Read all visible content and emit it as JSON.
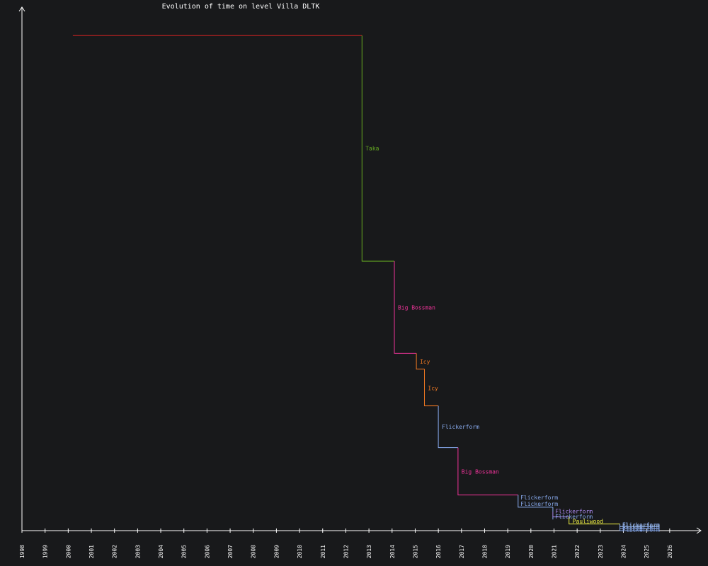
{
  "chart_data": {
    "type": "line",
    "title": "Evolution of time on level Villa DLTK",
    "xlabel": "",
    "ylabel": "",
    "x_ticks": [
      "1998",
      "1999",
      "2000",
      "2001",
      "2002",
      "2003",
      "2004",
      "2005",
      "2006",
      "2007",
      "2008",
      "2009",
      "2010",
      "2011",
      "2012",
      "2013",
      "2014",
      "2015",
      "2016",
      "2017",
      "2018",
      "2019",
      "2020",
      "2021",
      "2022",
      "2023",
      "2024",
      "2025",
      "2026"
    ],
    "xlim": [
      1998.0,
      2026.8
    ],
    "ylim": [
      0,
      1000
    ],
    "grid": false,
    "legend": "none",
    "series": [
      {
        "name": "",
        "color": "#cc2222",
        "points": [
          [
            2000.2,
            972
          ],
          [
            2012.7,
            972
          ]
        ]
      },
      {
        "name": "Taka",
        "color": "#66aa22",
        "points": [
          [
            2012.7,
            972
          ],
          [
            2012.7,
            529
          ],
          [
            2014.1,
            529
          ]
        ],
        "label": "Taka",
        "label_at": [
          2012.85,
          751
        ]
      },
      {
        "name": "Big Bossman",
        "color": "#ee3399",
        "points": [
          [
            2014.1,
            529
          ],
          [
            2014.1,
            348
          ],
          [
            2015.05,
            348
          ]
        ],
        "label": "Big Bossman",
        "label_at": [
          2014.25,
          438
        ]
      },
      {
        "name": "Icy",
        "color": "#ee7722",
        "points": [
          [
            2015.05,
            348
          ],
          [
            2015.05,
            317
          ],
          [
            2015.4,
            317
          ]
        ],
        "label": "Icy",
        "label_at": [
          2015.2,
          332
        ]
      },
      {
        "name": "Icy",
        "color": "#ee7722",
        "points": [
          [
            2015.4,
            317
          ],
          [
            2015.4,
            245
          ],
          [
            2016.0,
            245
          ]
        ],
        "label": "Icy",
        "label_at": [
          2015.55,
          280
        ]
      },
      {
        "name": "Flickerform",
        "color": "#88aaee",
        "points": [
          [
            2016.0,
            245
          ],
          [
            2016.0,
            163
          ],
          [
            2016.85,
            163
          ]
        ],
        "label": "Flickerform",
        "label_at": [
          2016.15,
          204
        ]
      },
      {
        "name": "Big Bossman",
        "color": "#ee3399",
        "points": [
          [
            2016.85,
            163
          ],
          [
            2016.85,
            70
          ],
          [
            2019.45,
            70
          ]
        ],
        "label": "Big Bossman",
        "label_at": [
          2017.0,
          116
        ]
      },
      {
        "name": "Flickerform",
        "color": "#88aaee",
        "points": [
          [
            2019.45,
            70
          ],
          [
            2019.45,
            46
          ],
          [
            2020.95,
            46
          ]
        ],
        "label": "Flickerform",
        "label_at": [
          2019.55,
          65
        ]
      },
      {
        "name": "Flickerform",
        "color": "#88aaee",
        "points": [
          [
            2020.95,
            46
          ],
          [
            2020.95,
            37
          ]
        ],
        "label": "Flickerform",
        "label_at": [
          2019.55,
          53
        ]
      },
      {
        "name": "Flickerform",
        "color": "#aa88ee",
        "points": [
          [
            2020.95,
            37
          ],
          [
            2020.95,
            27
          ],
          [
            2021.65,
            27
          ]
        ],
        "label": "Flickerform",
        "label_at": [
          2021.05,
          38
        ]
      },
      {
        "name": "Flickerform",
        "color": "#88aaee",
        "points": [
          [
            2020.95,
            27
          ],
          [
            2020.95,
            22
          ]
        ],
        "label": "Flickerform",
        "label_at": [
          2021.05,
          28
        ]
      },
      {
        "name": "Pauliwood",
        "color": "#eeee44",
        "points": [
          [
            2021.65,
            27
          ],
          [
            2021.65,
            13
          ],
          [
            2023.85,
            13
          ]
        ],
        "label": "Pauliwood",
        "label_at": [
          2021.8,
          19
        ]
      },
      {
        "name": "Flickerform",
        "color": "#88aaee",
        "points": [
          [
            2023.85,
            13
          ],
          [
            2023.85,
            0
          ],
          [
            2025.55,
            0
          ]
        ],
        "label": "Flickerform",
        "label_at": [
          2023.95,
          12
        ]
      },
      {
        "name": "Flickerform",
        "color": "#aaccff",
        "points": [
          [
            2023.85,
            8
          ],
          [
            2025.55,
            8
          ]
        ],
        "label": "Flickerform",
        "label_at": [
          2023.95,
          10
        ]
      },
      {
        "name": "Flickerform",
        "color": "#88aaee",
        "points": [
          [
            2023.85,
            4
          ],
          [
            2025.55,
            4
          ]
        ],
        "label": "Flickerform",
        "label_at": [
          2023.95,
          6
        ]
      },
      {
        "name": "Flickerform",
        "color": "#88aaee",
        "points": [
          [
            2023.85,
            0
          ],
          [
            2025.55,
            0
          ]
        ],
        "label": "Flickerform",
        "label_at": [
          2023.95,
          2
        ]
      }
    ],
    "colors": {
      "background": "#18191b",
      "axis": "#ffffff",
      "text": "#ffffff"
    }
  }
}
